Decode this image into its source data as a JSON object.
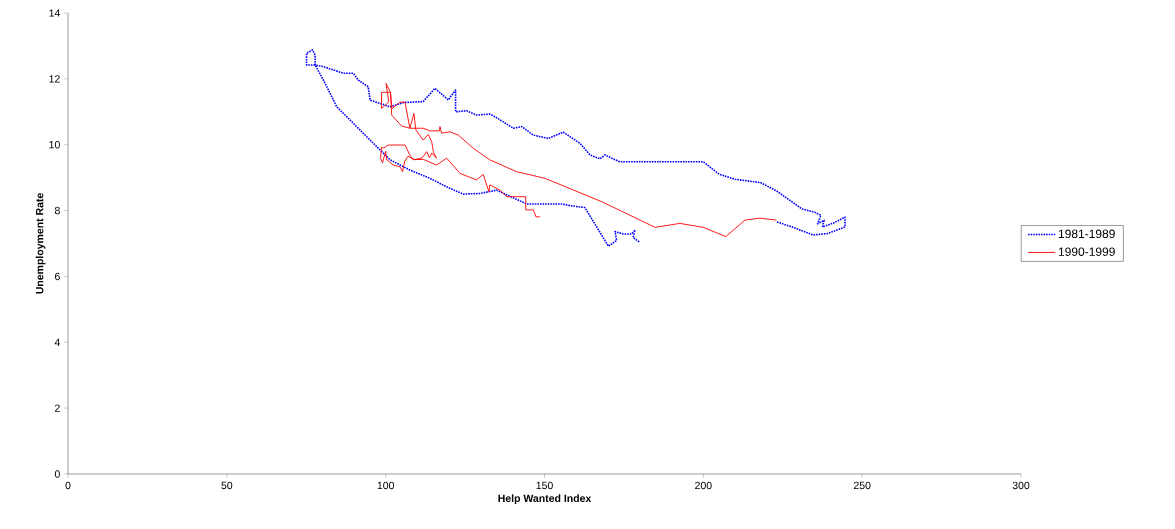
{
  "chart_data": {
    "type": "line",
    "xlabel": "Help Wanted Index",
    "ylabel": "Unemployment Rate",
    "xlim": [
      0,
      300
    ],
    "xticks": [
      0,
      50,
      100,
      150,
      200,
      250,
      300
    ],
    "ylim": [
      0,
      14
    ],
    "yticks": [
      0,
      2,
      4,
      6,
      8,
      10,
      12,
      14
    ],
    "grid": false,
    "legend": "right",
    "marker": "none",
    "series": [
      {
        "name": "1981-1989",
        "color": "#0000ff",
        "line_style": "dotted",
        "x": [
          179.8,
          177.9,
          178.5,
          177.4,
          174.8,
          172.2,
          172.7,
          170.1,
          162.7,
          158,
          155.4,
          144.4,
          134.9,
          129.7,
          124.4,
          119.2,
          113.9,
          107.6,
          101.4,
          97.2,
          92.9,
          88.8,
          84.6,
          82.5,
          80.4,
          77.8,
          75.1,
          75.1,
          77,
          77.8,
          77.8,
          80.4,
          86.7,
          89.8,
          91.4,
          94.5,
          95.1,
          97.4,
          101.4,
          105.6,
          111.8,
          115.5,
          119.7,
          122,
          122,
          125.5,
          128.6,
          132.8,
          134.4,
          140.2,
          142.8,
          146.5,
          151.2,
          155.9,
          161.2,
          164.3,
          167.5,
          169,
          171.6,
          173.7,
          200,
          205,
          210,
          218,
          223,
          231,
          235,
          237,
          236,
          238,
          237.5,
          241,
          244.6,
          244.6,
          239,
          234.5,
          228,
          223
        ],
        "values": [
          7.05,
          7.18,
          7.41,
          7.29,
          7.29,
          7.36,
          7.09,
          6.92,
          8.09,
          8.15,
          8.2,
          8.2,
          8.62,
          8.52,
          8.5,
          8.72,
          8.98,
          9.23,
          9.54,
          9.94,
          10.35,
          10.75,
          11.15,
          11.56,
          11.96,
          12.42,
          12.42,
          12.78,
          12.88,
          12.72,
          12.42,
          12.37,
          12.17,
          12.17,
          11.96,
          11.76,
          11.35,
          11.28,
          11.15,
          11.28,
          11.31,
          11.71,
          11.36,
          11.66,
          11,
          11.03,
          10.9,
          10.93,
          10.85,
          10.5,
          10.55,
          10.29,
          10.19,
          10.38,
          10.04,
          9.69,
          9.57,
          9.69,
          9.57,
          9.48,
          9.48,
          9.1,
          8.95,
          8.85,
          8.6,
          8.05,
          7.95,
          7.86,
          7.6,
          7.7,
          7.5,
          7.62,
          7.8,
          7.5,
          7.3,
          7.26,
          7.5,
          7.66
        ]
      },
      {
        "name": "1990-1999",
        "color": "#ff0000",
        "line_style": "solid",
        "x": [
          223,
          217.8,
          213.1,
          207.1,
          200,
          192.6,
          184.8,
          168,
          150.1,
          141.2,
          132.8,
          127.6,
          122.9,
          120.2,
          117.6,
          117.1,
          116.9,
          113.9,
          111.8,
          107.6,
          105,
          101.9,
          101.5,
          100.1,
          101,
          98.7,
          98.7,
          101.5,
          102,
          104.5,
          106.1,
          107.6,
          108.9,
          109.5,
          111.8,
          113.4,
          114.5,
          115,
          116,
          114.5,
          113.8,
          112.9,
          111.5,
          108.7,
          107.6,
          106.1,
          100.8,
          99.4,
          98.7,
          98.4,
          99,
          100,
          100.3,
          102.4,
          104.5,
          105.3,
          106,
          107,
          109,
          112,
          116,
          119.2,
          123.4,
          126.5,
          128.6,
          130.7,
          132.5,
          132.8,
          136,
          138.1,
          144.1,
          144.1,
          146.5,
          147.3,
          148.6
        ],
        "values": [
          7.71,
          7.77,
          7.71,
          7.21,
          7.49,
          7.61,
          7.49,
          8.27,
          8.98,
          9.18,
          9.54,
          9.89,
          10.29,
          10.39,
          10.35,
          10.55,
          10.42,
          10.42,
          10.5,
          10.5,
          10.57,
          10.9,
          11.6,
          11.86,
          11.3,
          11.1,
          11.59,
          11.59,
          11.1,
          11.29,
          11.29,
          10.5,
          10.95,
          10.45,
          10.14,
          10.31,
          10.09,
          9.79,
          9.59,
          9.75,
          9.6,
          9.79,
          9.6,
          9.54,
          9.69,
          9.99,
          9.99,
          9.9,
          9.92,
          9.59,
          9.45,
          9.8,
          9.55,
          9.38,
          9.33,
          9.18,
          9.5,
          9.65,
          9.55,
          9.55,
          9.38,
          9.59,
          9.13,
          9.01,
          8.93,
          9.1,
          8.57,
          8.78,
          8.62,
          8.42,
          8.42,
          8.02,
          8.02,
          7.81,
          7.81
        ]
      }
    ]
  }
}
